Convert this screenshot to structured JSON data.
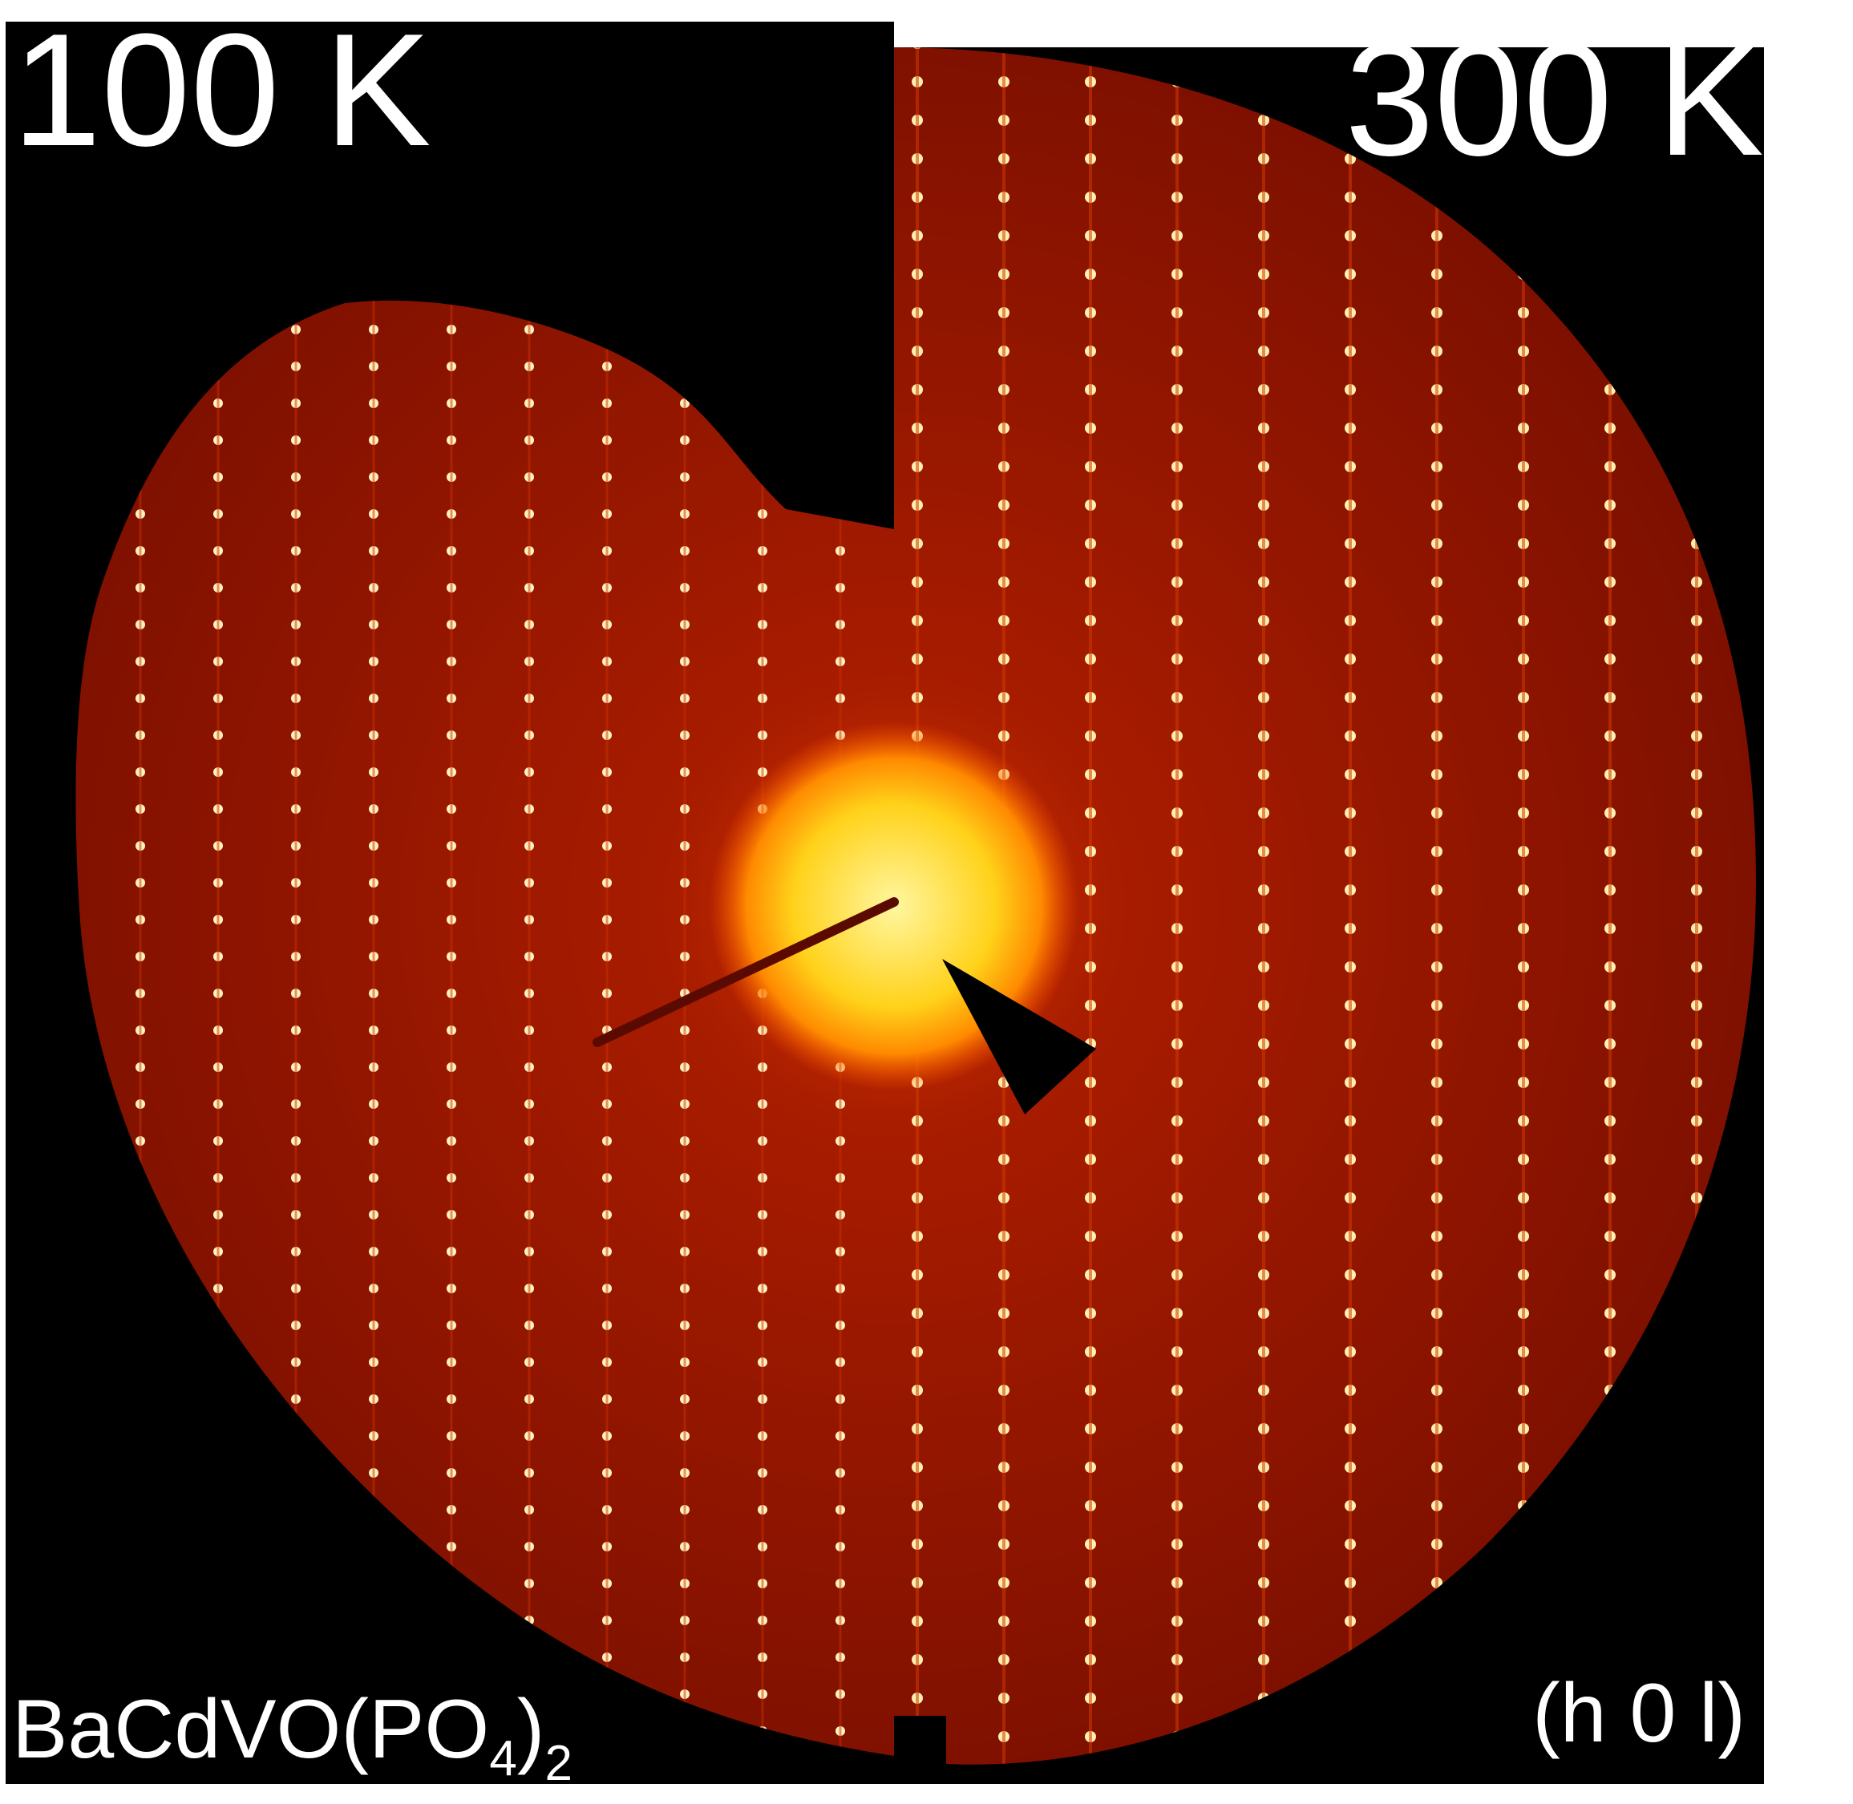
{
  "panel_left": {
    "label": "100 K"
  },
  "panel_right": {
    "label": "300 K"
  },
  "sample": {
    "parts": [
      "BaCdVO(PO",
      "4",
      ")",
      "2"
    ]
  },
  "plane": "(h 0 l)"
}
